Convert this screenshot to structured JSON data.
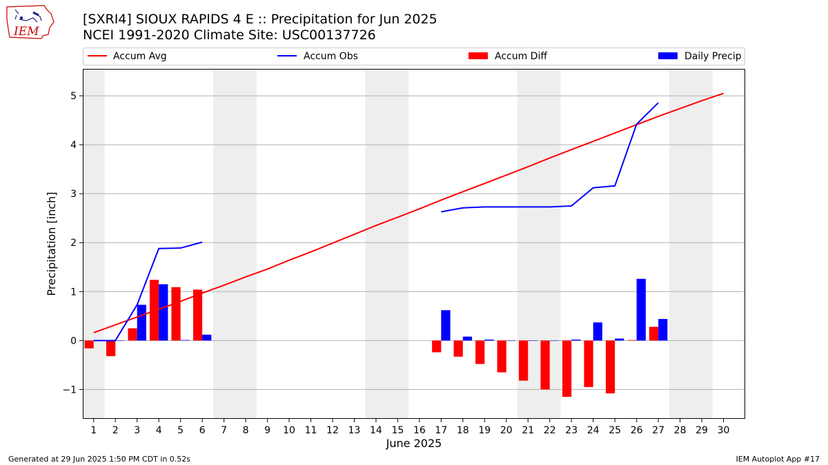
{
  "header": {
    "title_line1": "[SXRI4] SIOUX RAPIDS 4 E :: Precipitation for Jun 2025",
    "title_line2": "NCEI 1991-2020 Climate Site: USC00137726"
  },
  "logo": {
    "text": "IEM",
    "icon": "iowa-state-outline-icon"
  },
  "footer": {
    "left": "Generated at 29 Jun 2025 1:50 PM CDT in 0.52s",
    "right": "IEM Autoplot App #17"
  },
  "colors": {
    "avg": "#ff0000",
    "obs": "#0000ff",
    "diff": "#ff0000",
    "daily": "#0000ff",
    "weekend": "#eeeeee",
    "grid": "#b0b0b0"
  },
  "chart_data": {
    "type": "bar",
    "xlabel": "June 2025",
    "ylabel": "Precipitation [inch]",
    "ylim": [
      -1.6,
      5.55
    ],
    "xlim": [
      0.5,
      31.0
    ],
    "yticks": [
      -1,
      0,
      1,
      2,
      3,
      4,
      5
    ],
    "ytick_labels": [
      "−1",
      "0",
      "1",
      "2",
      "3",
      "4",
      "5"
    ],
    "x": [
      1,
      2,
      3,
      4,
      5,
      6,
      7,
      8,
      9,
      10,
      11,
      12,
      13,
      14,
      15,
      16,
      17,
      18,
      19,
      20,
      21,
      22,
      23,
      24,
      25,
      26,
      27,
      28,
      29,
      30
    ],
    "xtick_labels": [
      "1",
      "2",
      "3",
      "4",
      "5",
      "6",
      "7",
      "8",
      "9",
      "10",
      "11",
      "12",
      "13",
      "14",
      "15",
      "16",
      "17",
      "18",
      "19",
      "20",
      "21",
      "22",
      "23",
      "24",
      "25",
      "26",
      "27",
      "28",
      "29",
      "30"
    ],
    "weekend_spans": [
      [
        0.5,
        1.5
      ],
      [
        6.5,
        8.5
      ],
      [
        13.5,
        15.5
      ],
      [
        20.5,
        22.5
      ],
      [
        27.5,
        29.5
      ]
    ],
    "grid": "horizontal",
    "legend_position": "top",
    "series": [
      {
        "name": "Accum Avg",
        "type": "line",
        "x": [
          1,
          2,
          3,
          4,
          5,
          6,
          7,
          8,
          9,
          10,
          11,
          12,
          13,
          14,
          15,
          16,
          17,
          18,
          19,
          20,
          21,
          22,
          23,
          24,
          25,
          26,
          27,
          28,
          29,
          30
        ],
        "values": [
          0.16,
          0.32,
          0.48,
          0.64,
          0.8,
          0.97,
          1.13,
          1.3,
          1.46,
          1.64,
          1.81,
          1.99,
          2.17,
          2.35,
          2.52,
          2.69,
          2.87,
          3.04,
          3.21,
          3.38,
          3.55,
          3.73,
          3.9,
          4.07,
          4.24,
          4.41,
          4.58,
          4.74,
          4.9,
          5.05
        ]
      },
      {
        "name": "Accum Obs",
        "type": "line",
        "x": [
          1,
          2,
          3,
          4,
          5,
          6,
          17,
          18,
          19,
          20,
          21,
          22,
          23,
          24,
          25,
          26,
          27
        ],
        "segments": [
          [
            1,
            6
          ],
          [
            17,
            27
          ]
        ],
        "values": [
          0.0,
          0.0,
          0.73,
          1.88,
          1.89,
          2.01,
          2.63,
          2.71,
          2.73,
          2.73,
          2.73,
          2.73,
          2.75,
          3.12,
          3.16,
          4.42,
          4.86
        ]
      },
      {
        "name": "Accum Diff",
        "type": "bar",
        "x": [
          1,
          2,
          3,
          4,
          5,
          6,
          17,
          18,
          19,
          20,
          21,
          22,
          23,
          24,
          25,
          26,
          27
        ],
        "values": [
          -0.16,
          -0.32,
          0.25,
          1.24,
          1.09,
          1.04,
          -0.24,
          -0.33,
          -0.48,
          -0.65,
          -0.82,
          -1.0,
          -1.15,
          -0.95,
          -1.08,
          0.01,
          0.28
        ]
      },
      {
        "name": "Daily Precip",
        "type": "bar",
        "x": [
          1,
          2,
          3,
          4,
          5,
          6,
          17,
          18,
          19,
          20,
          21,
          22,
          23,
          24,
          25,
          26,
          27
        ],
        "values": [
          0.0,
          0.0,
          0.73,
          1.15,
          0.01,
          0.12,
          0.62,
          0.08,
          0.02,
          0.0,
          0.0,
          0.0,
          0.02,
          0.37,
          0.04,
          1.26,
          0.44
        ]
      }
    ]
  }
}
